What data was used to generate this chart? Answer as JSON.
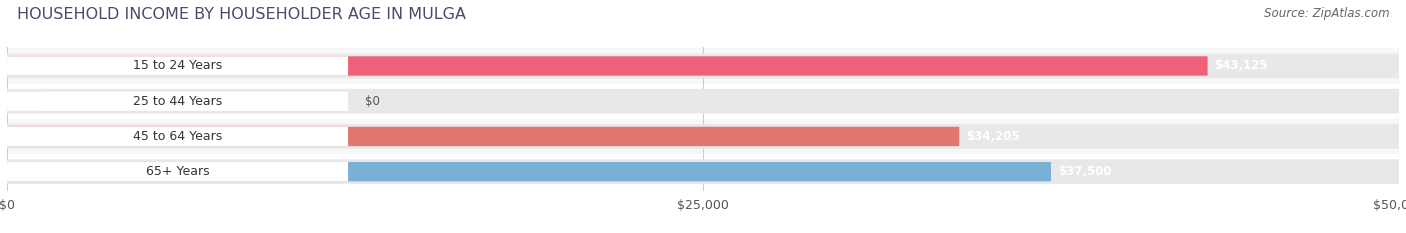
{
  "title": "HOUSEHOLD INCOME BY HOUSEHOLDER AGE IN MULGA",
  "source": "Source: ZipAtlas.com",
  "categories": [
    "15 to 24 Years",
    "25 to 44 Years",
    "45 to 64 Years",
    "65+ Years"
  ],
  "values": [
    43125,
    0,
    34205,
    37500
  ],
  "bar_colors": [
    "#f0607a",
    "#e8c08a",
    "#e07870",
    "#7ab0d8"
  ],
  "xlim": [
    0,
    50000
  ],
  "xticks": [
    0,
    25000,
    50000
  ],
  "xtick_labels": [
    "$0",
    "$25,000",
    "$50,000"
  ],
  "value_labels": [
    "$43,125",
    "$0",
    "$34,205",
    "$37,500"
  ],
  "title_fontsize": 11.5,
  "source_fontsize": 8.5,
  "label_fontsize": 9,
  "tick_fontsize": 9,
  "background_color": "#ffffff",
  "track_color": "#e8e8e8",
  "row_alt_colors": [
    "#f7f7f7",
    "#ffffff",
    "#f7f7f7",
    "#ffffff"
  ]
}
